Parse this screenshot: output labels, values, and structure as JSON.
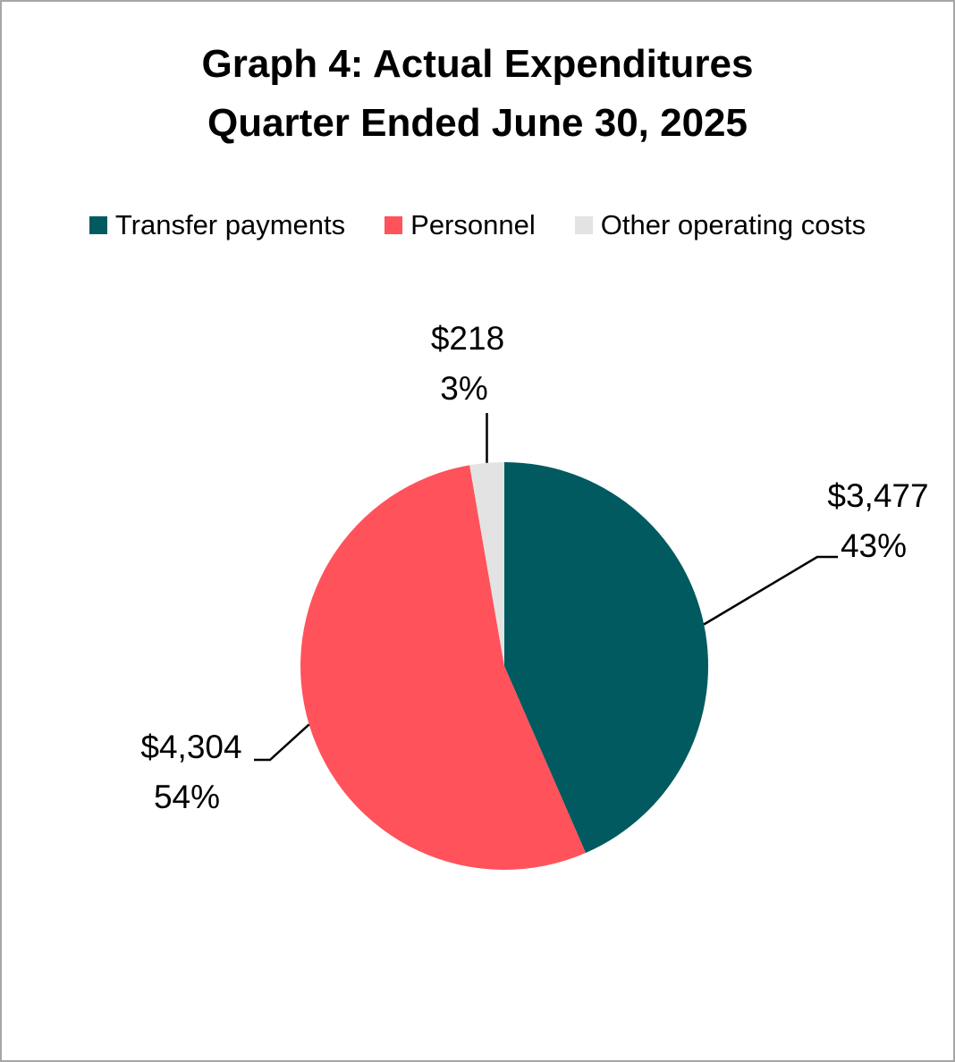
{
  "chart_data": {
    "type": "pie",
    "title": "Graph 4: Actual Expenditures",
    "subtitle": "Quarter Ended June 30, 2025",
    "legend_position": "top",
    "slices": [
      {
        "name": "Transfer payments",
        "value": 3477,
        "value_label": "$3,477",
        "percent_label": "43%",
        "color": "#005a5f"
      },
      {
        "name": "Personnel",
        "value": 4304,
        "value_label": "$4,304",
        "percent_label": "54%",
        "color": "#ff525b"
      },
      {
        "name": "Other operating costs",
        "value": 218,
        "value_label": "$218",
        "percent_label": "3%",
        "color": "#e3e3e3"
      }
    ]
  }
}
